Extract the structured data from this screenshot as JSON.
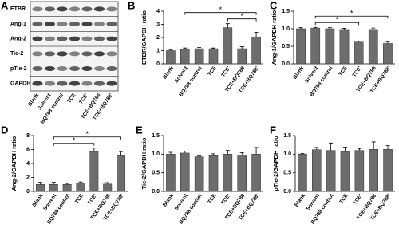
{
  "blot": {
    "panel": "A",
    "rows": [
      "ETBR",
      "Ang-1",
      "Ang-2",
      "Tie-2",
      "pTie-2",
      "GAPDH"
    ]
  },
  "chart_data": [
    {
      "type": "bar",
      "panel": "B",
      "y_label": "ETBR/GAPDH ratio",
      "color": "#6d6d6d",
      "categories": [
        "Blank",
        "Solvent",
        "BQ788 control",
        "TCE",
        "TCE'",
        "TCE+BQ788",
        "TCE+BQ788'"
      ],
      "values": [
        1.0,
        1.1,
        1.15,
        1.15,
        2.75,
        1.15,
        2.05
      ],
      "errors": [
        0.08,
        0.1,
        0.1,
        0.05,
        0.3,
        0.15,
        0.35
      ],
      "ylim": [
        0,
        4
      ],
      "yticks": [
        0,
        1,
        2,
        3,
        4
      ],
      "brackets": [
        {
          "start": 4,
          "end": 6,
          "label": "*"
        },
        {
          "start": 1,
          "end": 6,
          "label": "*"
        }
      ]
    },
    {
      "type": "bar",
      "panel": "C",
      "y_label": "Ang-1/GAPDH ratio",
      "color": "#6d6d6d",
      "categories": [
        "Blank",
        "Solvent",
        "BQ788 control",
        "TCE",
        "TCE'",
        "TCE+BQ788",
        "TCE+BQ788'"
      ],
      "values": [
        1.0,
        1.02,
        1.0,
        0.98,
        0.62,
        0.98,
        0.58
      ],
      "errors": [
        0.03,
        0.02,
        0.03,
        0.03,
        0.03,
        0.04,
        0.05
      ],
      "ylim": [
        0,
        1.5
      ],
      "yticks": [
        {
          "value": 0,
          "label": "0.0"
        },
        {
          "value": 0.5,
          "label": "0.5"
        },
        {
          "value": 1,
          "label": "1.0"
        },
        {
          "value": 1.5,
          "label": "1.5"
        }
      ],
      "brackets": [
        {
          "start": 1,
          "end": 4,
          "label": "*"
        },
        {
          "start": 1,
          "end": 6,
          "label": "*"
        }
      ]
    },
    {
      "type": "bar",
      "panel": "D",
      "y_label": "Ang-2/GAPDH ratio",
      "color": "#6d6d6d",
      "categories": [
        "Blank",
        "Solvent",
        "BQ788 control",
        "TCE",
        "TCE'",
        "TCE+BQ788",
        "TCE+BQ788'"
      ],
      "values": [
        1.0,
        1.0,
        1.0,
        1.2,
        5.7,
        1.05,
        5.1
      ],
      "errors": [
        0.3,
        0.3,
        0.15,
        0.15,
        0.5,
        0.2,
        0.6
      ],
      "ylim": [
        0,
        8
      ],
      "yticks": [
        0,
        2,
        4,
        6,
        8
      ],
      "brackets": [
        {
          "start": 1,
          "end": 4,
          "label": "*"
        },
        {
          "start": 1,
          "end": 6,
          "label": "*"
        }
      ]
    },
    {
      "type": "bar",
      "panel": "E",
      "y_label": "Tie-2/GAPDH ratio",
      "color": "#6d6d6d",
      "categories": [
        "Blank",
        "Solvent",
        "BQ788 control",
        "TCE",
        "TCE'",
        "TCE+BQ788",
        "TCE+BQ788'"
      ],
      "values": [
        1.0,
        1.03,
        0.93,
        0.96,
        1.0,
        0.97,
        1.0
      ],
      "errors": [
        0.05,
        0.05,
        0.02,
        0.05,
        0.1,
        0.07,
        0.18
      ],
      "ylim": [
        0,
        1.5
      ],
      "yticks": [
        {
          "value": 0,
          "label": "0.0"
        },
        {
          "value": 0.5,
          "label": "0.5"
        },
        {
          "value": 1,
          "label": "1.0"
        },
        {
          "value": 1.5,
          "label": "1.5"
        }
      ]
    },
    {
      "type": "bar",
      "panel": "F",
      "y_label": "pTie-2/GAPDH ratio",
      "color": "#6d6d6d",
      "categories": [
        "Blank",
        "Solvent",
        "BQ788 control",
        "TCE",
        "TCE'",
        "TCE+BQ788",
        "TCE+BQ788'"
      ],
      "values": [
        1.0,
        1.12,
        1.1,
        1.07,
        1.1,
        1.13,
        1.13
      ],
      "errors": [
        0.02,
        0.06,
        0.2,
        0.12,
        0.05,
        0.2,
        0.1
      ],
      "ylim": [
        0,
        1.5
      ],
      "yticks": [
        {
          "value": 0,
          "label": "0.0"
        },
        {
          "value": 0.5,
          "label": "0.5"
        },
        {
          "value": 1,
          "label": "1.0"
        },
        {
          "value": 1.5,
          "label": "1.5"
        }
      ]
    }
  ]
}
